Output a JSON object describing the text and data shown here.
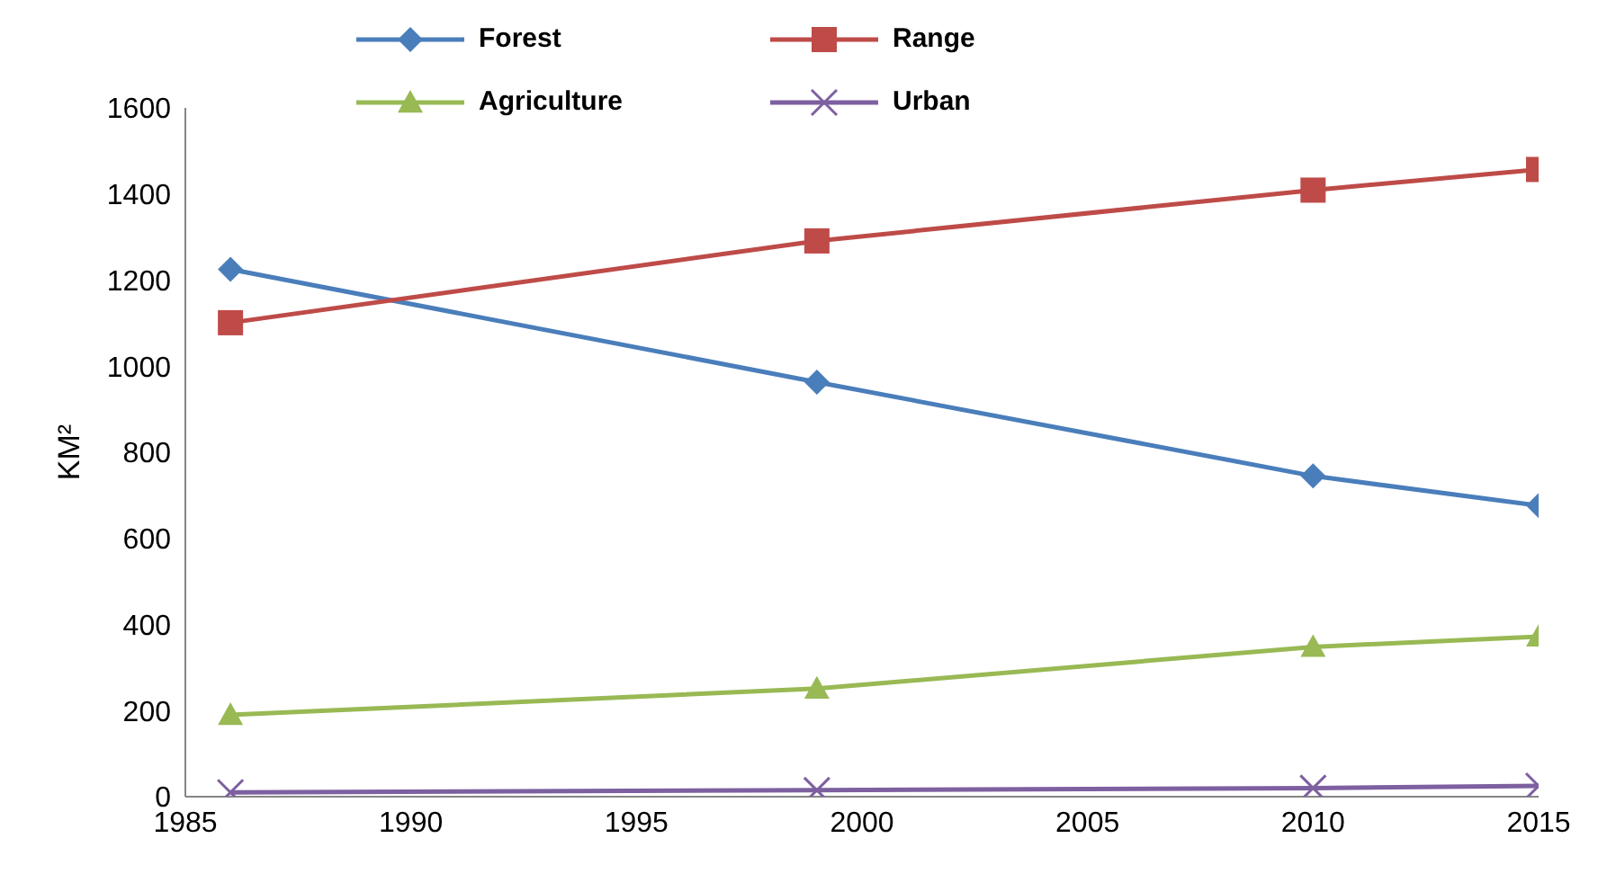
{
  "chart_data": {
    "type": "line",
    "ylabel": "KM²",
    "x": [
      1986,
      1999,
      2010,
      2015
    ],
    "xlim": [
      1985,
      2015
    ],
    "xticks": [
      1985,
      1990,
      1995,
      2000,
      2005,
      2010,
      2015
    ],
    "ylim": [
      0,
      1600
    ],
    "yticks": [
      0,
      200,
      400,
      600,
      800,
      1000,
      1200,
      1400,
      1600
    ],
    "grid": false,
    "legend": "top",
    "line_style": "solid",
    "series": [
      {
        "name": "Forest",
        "color": "#4a7ebb",
        "marker": "diamond",
        "values": [
          1225,
          963,
          745,
          676
        ]
      },
      {
        "name": "Range",
        "color": "#be4b48",
        "marker": "square",
        "values": [
          1101,
          1291,
          1409,
          1457
        ]
      },
      {
        "name": "Agriculture",
        "color": "#98b954",
        "marker": "triangle",
        "values": [
          190,
          251,
          348,
          372
        ]
      },
      {
        "name": "Urban",
        "color": "#7d60a0",
        "marker": "cross",
        "values": [
          10,
          15,
          20,
          25
        ]
      }
    ]
  }
}
